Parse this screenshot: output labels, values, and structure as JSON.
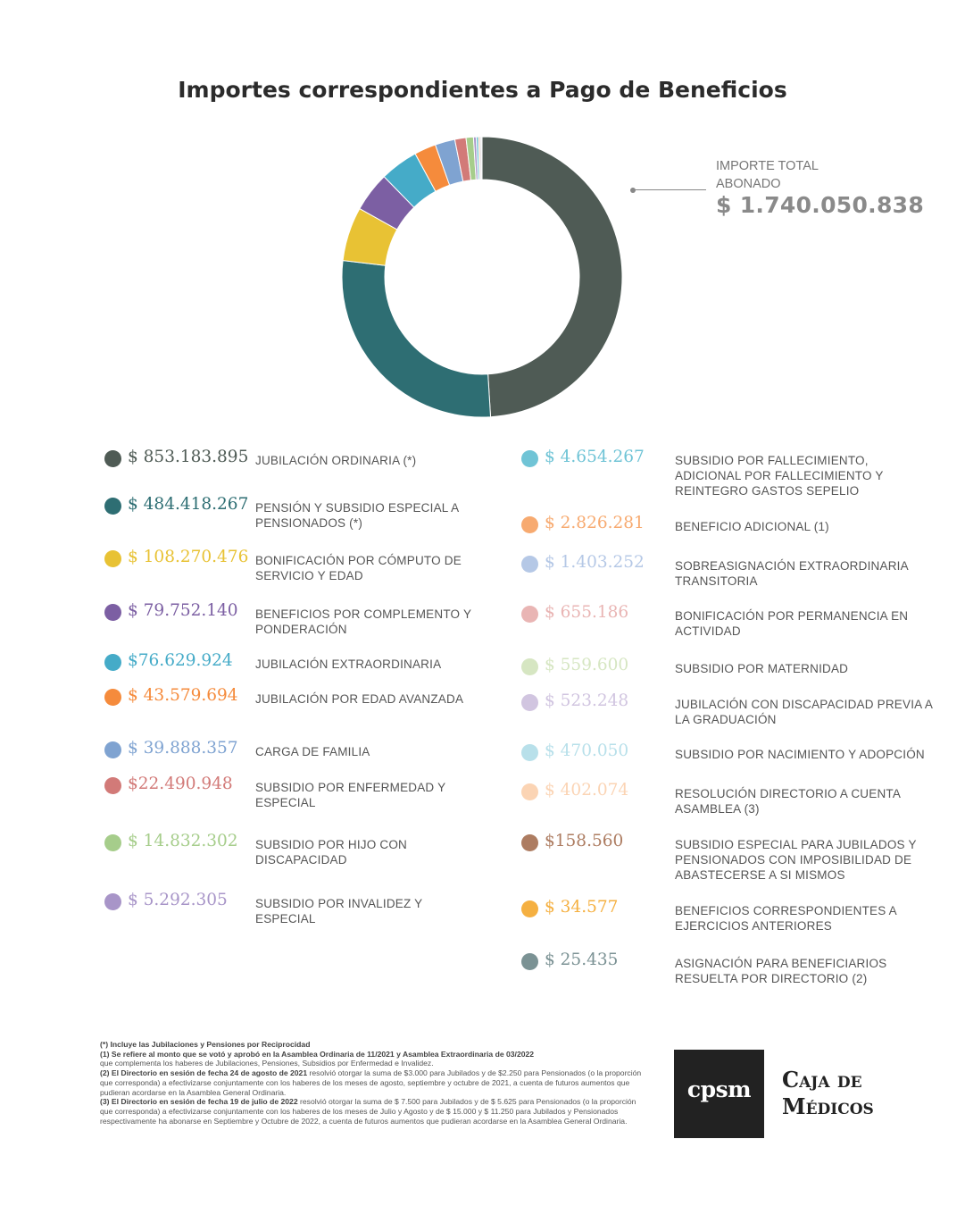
{
  "title": "Importes correspondientes a Pago de Beneficios",
  "total": {
    "label_line1": "IMPORTE TOTAL",
    "label_line2": "ABONADO",
    "value": "$ 1.740.050.838"
  },
  "chart_data": {
    "type": "pie",
    "donut": true,
    "title": "Importes correspondientes a Pago de Beneficios",
    "total": 1740050838,
    "slices": [
      {
        "label": "JUBILACIÓN ORDINARIA (*)",
        "value": 853183895,
        "color": "#4f5b55"
      },
      {
        "label": "PENSIÓN Y SUBSIDIO ESPECIAL A PENSIONADOS (*)",
        "value": 484418267,
        "color": "#2e6e73"
      },
      {
        "label": "BONIFICACIÓN POR CÓMPUTO DE SERVICIO Y EDAD",
        "value": 108270476,
        "color": "#e8c234"
      },
      {
        "label": "BENEFICIOS POR COMPLEMENTO Y PONDERACIÓN",
        "value": 79752140,
        "color": "#7c5fa3"
      },
      {
        "label": "JUBILACIÓN EXTRAORDINARIA",
        "value": 76629924,
        "color": "#45abc8"
      },
      {
        "label": "JUBILACIÓN POR EDAD AVANZADA",
        "value": 43579694,
        "color": "#f58b3c"
      },
      {
        "label": "CARGA DE FAMILIA",
        "value": 39888357,
        "color": "#7fa3d1"
      },
      {
        "label": "SUBSIDIO POR ENFERMEDAD Y ESPECIAL",
        "value": 22490948,
        "color": "#d27a78"
      },
      {
        "label": "SUBSIDIO POR HIJO CON DISCAPACIDAD",
        "value": 14832302,
        "color": "#a6cd8b"
      },
      {
        "label": "SUBSIDIO POR INVALIDEZ Y ESPECIAL",
        "value": 5292305,
        "color": "#a895c8"
      },
      {
        "label": "SUBSIDIO POR FALLECIMIENTO, ADICIONAL POR FALLECIMIENTO Y REINTEGRO GASTOS SEPELIO",
        "value": 4654267,
        "color": "#70c4d6"
      },
      {
        "label": "BENEFICIO ADICIONAL (1)",
        "value": 2826281,
        "color": "#f7aa70"
      },
      {
        "label": "SOBREASIGNACIÓN EXTRAORDINARIA TRANSITORIA",
        "value": 1403252,
        "color": "#b5c8e6"
      },
      {
        "label": "BONIFICACIÓN POR PERMANENCIA EN ACTIVIDAD",
        "value": 655186,
        "color": "#e9b5b4"
      },
      {
        "label": "SUBSIDIO POR MATERNIDAD",
        "value": 559600,
        "color": "#d6e6c2"
      },
      {
        "label": "JUBILACIÓN CON DISCAPACIDAD PREVIA A LA GRADUACIÓN",
        "value": 523248,
        "color": "#d1c5e0"
      },
      {
        "label": "SUBSIDIO POR NACIMIENTO Y ADOPCIÓN",
        "value": 470050,
        "color": "#b8e0ea"
      },
      {
        "label": "RESOLUCIÓN DIRECTORIO A CUENTA ASAMBLEA (3)",
        "value": 402074,
        "color": "#fbd4b4"
      },
      {
        "label": "SUBSIDIO ESPECIAL PARA JUBILADOS Y PENSIONADOS CON IMPOSIBILIDAD DE ABASTECERSE A SI MISMOS",
        "value": 158560,
        "color": "#ad7c61"
      },
      {
        "label": "BENEFICIOS CORRESPONDIENTES A EJERCICIOS ANTERIORES",
        "value": 34577,
        "color": "#f5b041"
      },
      {
        "label": "ASIGNACIÓN PARA BENEFICIARIOS RESUELTA POR DIRECTORIO (2)",
        "value": 25435,
        "color": "#7b9294"
      }
    ]
  },
  "legend_left": [
    {
      "amount": "$ 853.183.895",
      "label": "JUBILACIÓN ORDINARIA (*)",
      "color": "#4f5b55"
    },
    {
      "amount": "$ 484.418.267",
      "label": "PENSIÓN Y SUBSIDIO ESPECIAL A PENSIONADOS (*)",
      "color": "#2e6e73"
    },
    {
      "amount": "$ 108.270.476",
      "label": "BONIFICACIÓN POR CÓMPUTO DE SERVICIO Y EDAD",
      "color": "#e8c234"
    },
    {
      "amount": "$ 79.752.140",
      "label": "BENEFICIOS POR COMPLEMENTO Y PONDERACIÓN",
      "color": "#7c5fa3"
    },
    {
      "amount": "$76.629.924",
      "label": "JUBILACIÓN EXTRAORDINARIA",
      "color": "#45abc8"
    },
    {
      "amount": "$ 43.579.694",
      "label": "JUBILACIÓN POR EDAD AVANZADA",
      "color": "#f58b3c"
    },
    {
      "amount": "$ 39.888.357",
      "label": "CARGA DE FAMILIA",
      "color": "#7fa3d1"
    },
    {
      "amount": "$22.490.948",
      "label": "SUBSIDIO POR ENFERMEDAD Y ESPECIAL",
      "color": "#d27a78"
    },
    {
      "amount": "$ 14.832.302",
      "label": "SUBSIDIO POR HIJO CON DISCAPACIDAD",
      "color": "#a6cd8b"
    },
    {
      "amount": "$ 5.292.305",
      "label": "SUBSIDIO POR INVALIDEZ Y ESPECIAL",
      "color": "#a895c8"
    }
  ],
  "legend_right": [
    {
      "amount": "$ 4.654.267",
      "label": "SUBSIDIO POR FALLECIMIENTO, ADICIONAL POR FALLECIMIENTO Y REINTEGRO GASTOS SEPELIO",
      "color": "#70c4d6"
    },
    {
      "amount": "$ 2.826.281",
      "label": "BENEFICIO ADICIONAL (1)",
      "color": "#f7aa70"
    },
    {
      "amount": "$ 1.403.252",
      "label": "SOBREASIGNACIÓN EXTRAORDINARIA TRANSITORIA",
      "color": "#b5c8e6"
    },
    {
      "amount": "$ 655.186",
      "label": "BONIFICACIÓN POR PERMANENCIA EN ACTIVIDAD",
      "color": "#e9b5b4"
    },
    {
      "amount": "$ 559.600",
      "label": "SUBSIDIO POR MATERNIDAD",
      "color": "#d6e6c2"
    },
    {
      "amount": "$ 523.248",
      "label": "JUBILACIÓN CON DISCAPACIDAD PREVIA A LA GRADUACIÓN",
      "color": "#d1c5e0"
    },
    {
      "amount": "$ 470.050",
      "label": "SUBSIDIO POR NACIMIENTO Y ADOPCIÓN",
      "color": "#b8e0ea"
    },
    {
      "amount": "$ 402.074",
      "label": "RESOLUCIÓN DIRECTORIO A CUENTA ASAMBLEA (3)",
      "color": "#fbd4b4"
    },
    {
      "amount": "$158.560",
      "label": "SUBSIDIO ESPECIAL PARA JUBILADOS Y PENSIONADOS CON IMPOSIBILIDAD DE ABASTECERSE A SI MISMOS",
      "color": "#ad7c61"
    },
    {
      "amount": "$ 34.577",
      "label": "BENEFICIOS CORRESPONDIENTES A EJERCICIOS ANTERIORES",
      "color": "#f5b041"
    },
    {
      "amount": "$ 25.435",
      "label": "ASIGNACIÓN PARA BENEFICIARIOS RESUELTA POR DIRECTORIO (2)",
      "color": "#7b9294"
    }
  ],
  "footnotes": {
    "n0": "(*) Incluye las Jubilaciones y Pensiones por Reciprocidad",
    "n1_bold": "(1) Se refiere al monto que se votó y aprobó en la Asamblea Ordinaria de 11/2021 y Asamblea Extraordinaria de 03/2022",
    "n1_text": "que complementa los haberes de Jubilaciones, Pensiones, Subsidios por Enfermedad e Invalidez.",
    "n2_bold": "(2) El Directorio en sesión de fecha 24 de agosto de 2021",
    "n2_text": "resolvió otorgar la suma de $3.000 para Jubilados y de $2.250 para Pensionados (o la proporción que corresponda) a efectivizarse conjuntamente con los haberes de los meses de agosto, septiembre y octubre de 2021, a cuenta de futuros aumentos que pudieran acordarse en la Asamblea General Ordinaria.",
    "n3_bold": "(3) El Directorio en sesión de fecha 19 de julio de 2022",
    "n3_text": "resolvió otorgar la suma de $ 7.500 para Jubilados y de $ 5.625 para Pensionados (o la proporción que corresponda) a efectivizarse conjuntamente con los haberes de los meses de Julio y Agosto y de $ 15.000  y $ 11.250 para Jubilados y Pensionados respectivamente ha abonarse en Septiembre y Octubre de 2022, a cuenta de futuros aumentos que pudieran acordarse en la Asamblea General Ordinaria."
  },
  "logo": {
    "mark": "cpsm",
    "brand_line1": "Caja de",
    "brand_line2": "Médicos"
  }
}
